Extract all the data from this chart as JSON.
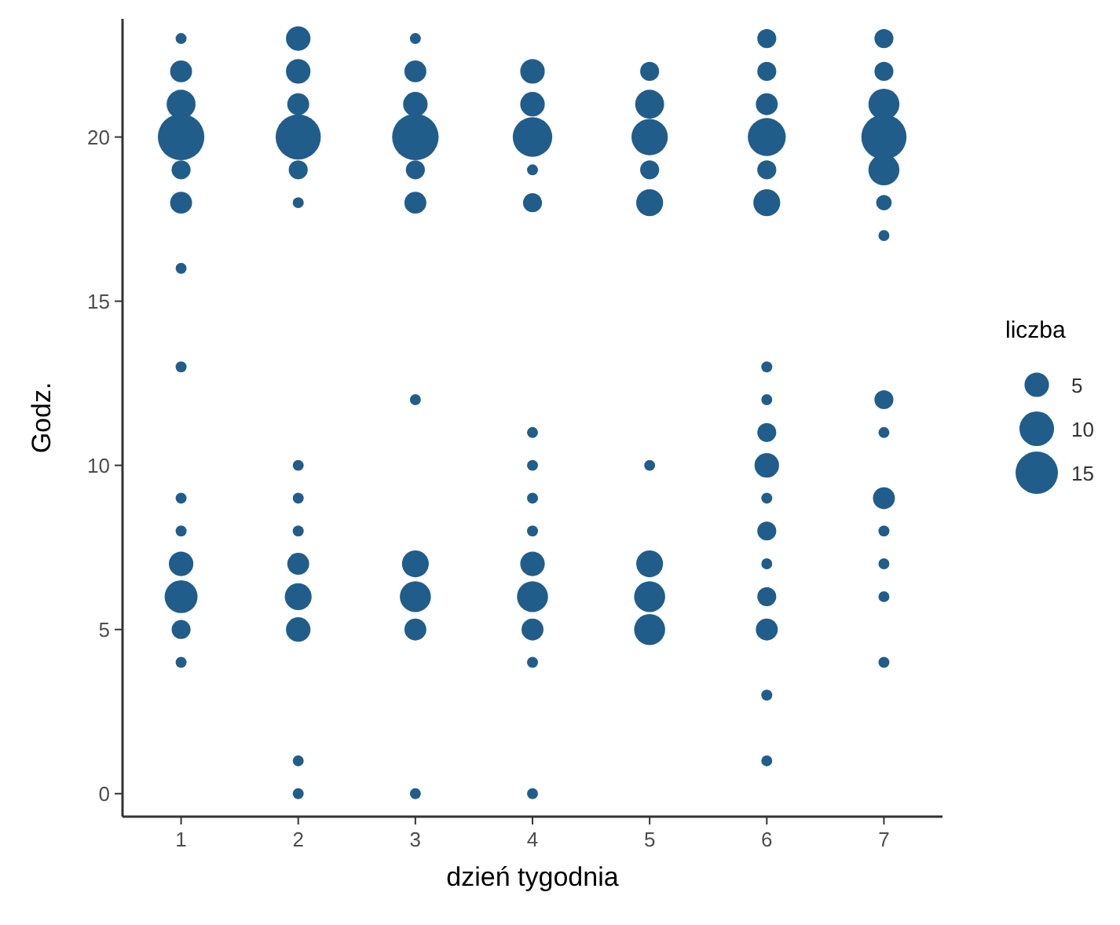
{
  "chart_data": {
    "type": "bubble",
    "xlabel": "dzień tygodnia",
    "ylabel": "Godz.",
    "legend_title": "liczba",
    "grid": false,
    "marker": "circle",
    "xlim": [
      0.5,
      7.5
    ],
    "xticks": [
      1,
      2,
      3,
      4,
      5,
      6,
      7
    ],
    "ylim": [
      -0.7,
      23.6
    ],
    "yticks": [
      0,
      5,
      10,
      15,
      20
    ],
    "size_legend": [
      5,
      10,
      15
    ],
    "series": [
      {
        "color": "#215d8b",
        "x": [
          1,
          1,
          1,
          1,
          1,
          1,
          1,
          1,
          1,
          1,
          1,
          1,
          1,
          1,
          2,
          2,
          2,
          2,
          2,
          2,
          2,
          2,
          2,
          2,
          2,
          2,
          2,
          2,
          3,
          3,
          3,
          3,
          3,
          3,
          3,
          3,
          3,
          3,
          3,
          4,
          4,
          4,
          4,
          4,
          4,
          4,
          4,
          4,
          4,
          4,
          4,
          4,
          4,
          5,
          5,
          5,
          5,
          5,
          5,
          5,
          5,
          5,
          6,
          6,
          6,
          6,
          6,
          6,
          6,
          6,
          6,
          6,
          6,
          6,
          6,
          6,
          6,
          6,
          6,
          7,
          7,
          7,
          7,
          7,
          7,
          7,
          7,
          7,
          7,
          7,
          7,
          7,
          7
        ],
        "values": [
          23,
          22,
          21,
          20,
          19,
          18,
          16,
          13,
          9,
          8,
          7,
          6,
          5,
          4,
          23,
          22,
          21,
          20,
          19,
          18,
          10,
          9,
          8,
          7,
          6,
          5,
          1,
          0,
          23,
          22,
          21,
          20,
          19,
          18,
          12,
          7,
          6,
          5,
          0,
          22,
          21,
          20,
          19,
          18,
          11,
          10,
          9,
          8,
          7,
          6,
          5,
          4,
          0,
          22,
          21,
          20,
          19,
          18,
          10,
          7,
          6,
          5,
          23,
          22,
          21,
          20,
          19,
          18,
          13,
          12,
          11,
          10,
          9,
          8,
          7,
          6,
          5,
          3,
          1,
          23,
          22,
          21,
          20,
          19,
          18,
          17,
          12,
          11,
          9,
          8,
          7,
          6,
          4
        ],
        "sizes": [
          1,
          4,
          7,
          18,
          3,
          4,
          1,
          1,
          1,
          1,
          5,
          9,
          3,
          1,
          5,
          5,
          4,
          17,
          3,
          1,
          1,
          1,
          1,
          4,
          6,
          5,
          1,
          1,
          1,
          4,
          5,
          18,
          3,
          4,
          1,
          6,
          8,
          4,
          1,
          5,
          5,
          13,
          1,
          3,
          1,
          1,
          1,
          1,
          5,
          8,
          4,
          1,
          1,
          3,
          7,
          11,
          3,
          6,
          1,
          6,
          8,
          8,
          3,
          3,
          4,
          12,
          3,
          6,
          1,
          1,
          3,
          5,
          1,
          3,
          1,
          3,
          4,
          1,
          1,
          3,
          3,
          8,
          17,
          8,
          2,
          1,
          3,
          1,
          4,
          1,
          1,
          1,
          1
        ]
      }
    ]
  }
}
